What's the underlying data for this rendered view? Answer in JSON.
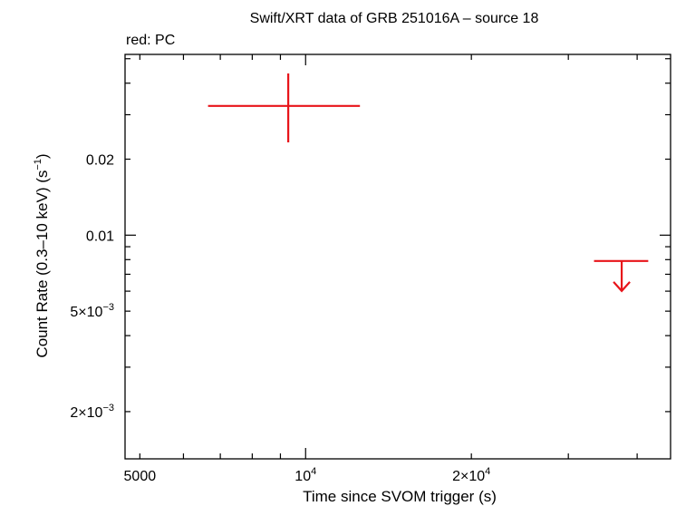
{
  "chart_data": {
    "type": "scatter",
    "title": "Swift/XRT data of GRB 251016A – source 18",
    "subtitle": "red: PC",
    "xlabel": "Time since SVOM trigger (s)",
    "ylabel": "Count Rate (0.3–10 keV) (s",
    "ylabel_sup": "−1",
    "ylabel_tail": ")",
    "x_scale": "log",
    "y_scale": "log",
    "xlim": [
      4700,
      46000
    ],
    "ylim": [
      0.0013,
      0.052
    ],
    "x_ticks": [
      {
        "value": 5000,
        "label": "5000",
        "sup": ""
      },
      {
        "value": 10000,
        "label": "10",
        "sup": "4"
      },
      {
        "value": 20000,
        "label": "2×10",
        "sup": "4"
      }
    ],
    "y_ticks": [
      {
        "value": 0.002,
        "label": "2×10",
        "sup": "−3"
      },
      {
        "value": 0.005,
        "label": "5×10",
        "sup": "−3"
      },
      {
        "value": 0.01,
        "label": "0.01",
        "sup": ""
      },
      {
        "value": 0.02,
        "label": "0.02",
        "sup": ""
      }
    ],
    "color": "#e8141a",
    "series": [
      {
        "mode": "PC",
        "points": [
          {
            "x": 9300,
            "x_lo": 6650,
            "x_hi": 12550,
            "y": 0.0325,
            "y_lo": 0.0233,
            "y_hi": 0.0437,
            "upper_limit": false
          }
        ]
      },
      {
        "mode": "PC",
        "points": [
          {
            "x": 37500,
            "x_lo": 33400,
            "x_hi": 41900,
            "y": 0.0079,
            "upper_limit": true
          }
        ]
      }
    ]
  }
}
